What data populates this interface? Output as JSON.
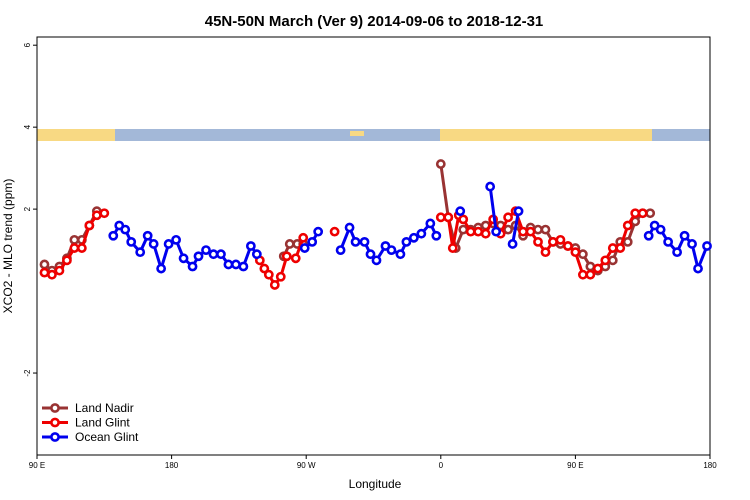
{
  "chart_data": {
    "type": "line",
    "title": "45N-50N March (Ver 9)   2014-09-06 to 2018-12-31",
    "x_label": "Longitude",
    "y_label": "XCO2 - MLO trend (ppm)",
    "xlim": [
      90,
      540
    ],
    "ylim": [
      -4,
      6.2
    ],
    "xticks": [
      {
        "value": 90,
        "label": "90 E"
      },
      180,
      {
        "value": 270,
        "label": "90 W"
      },
      {
        "value": 360,
        "label": "0"
      },
      {
        "value": 450,
        "label": "90 E"
      },
      {
        "value": 540,
        "label": "180"
      }
    ],
    "yticks": [
      -2,
      2,
      4,
      6
    ],
    "legend": "bottom-left",
    "series": [
      {
        "name": "Land Nadir",
        "color": "#993333",
        "x": [
          95,
          100,
          105,
          110,
          115,
          120,
          125,
          130,
          null,
          255,
          259,
          264,
          268,
          null,
          360,
          365,
          370,
          375,
          380,
          385,
          390,
          395,
          400,
          405,
          410,
          415,
          420,
          425,
          430,
          435,
          440,
          445,
          450,
          455,
          460,
          465,
          470,
          475,
          480,
          485,
          490,
          495,
          500
        ],
        "values": [
          0.65,
          0.5,
          0.6,
          0.8,
          1.25,
          1.25,
          1.6,
          1.95,
          null,
          0.85,
          1.15,
          1.15,
          1.15,
          null,
          3.1,
          1.8,
          1.05,
          1.5,
          1.5,
          1.55,
          1.6,
          1.65,
          1.6,
          1.5,
          1.6,
          1.35,
          1.55,
          1.5,
          1.5,
          1.2,
          1.15,
          1.1,
          1.05,
          0.9,
          0.6,
          0.5,
          0.6,
          0.75,
          1.2,
          1.2,
          1.7,
          1.9,
          1.9
        ]
      },
      {
        "name": "Land Glint",
        "color": "#ee0000",
        "x": [
          95,
          100,
          105,
          110,
          115,
          120,
          125,
          130,
          135,
          null,
          239,
          242,
          245,
          249,
          253,
          257,
          263,
          268,
          null,
          289,
          null,
          360,
          365,
          368,
          372,
          375,
          380,
          385,
          390,
          395,
          400,
          405,
          410,
          415,
          420,
          425,
          430,
          435,
          440,
          445,
          450,
          455,
          460,
          465,
          470,
          475,
          480,
          485,
          490,
          495
        ],
        "values": [
          0.45,
          0.4,
          0.5,
          0.75,
          1.05,
          1.05,
          1.6,
          1.85,
          1.9,
          null,
          0.75,
          0.55,
          0.4,
          0.15,
          0.35,
          0.85,
          0.8,
          1.3,
          null,
          1.45,
          null,
          1.8,
          1.8,
          1.05,
          1.85,
          1.75,
          1.45,
          1.45,
          1.4,
          1.75,
          1.4,
          1.8,
          1.95,
          1.45,
          1.45,
          1.2,
          0.95,
          1.2,
          1.25,
          1.1,
          0.95,
          0.4,
          0.4,
          0.55,
          0.75,
          1.05,
          1.05,
          1.6,
          1.9,
          1.9
        ]
      },
      {
        "name": "Ocean Glint",
        "color": "#0000ee",
        "x": [
          141,
          145,
          149,
          153,
          159,
          164,
          168,
          173,
          178,
          183,
          188,
          194,
          198,
          203,
          208,
          213,
          218,
          223,
          228,
          233,
          237,
          null,
          269,
          274,
          278,
          null,
          293,
          299,
          303,
          309,
          313,
          317,
          323,
          327,
          333,
          337,
          342,
          347,
          353,
          357,
          null,
          373,
          null,
          393,
          397,
          null,
          408,
          412,
          null,
          499,
          503,
          507,
          512,
          518,
          523,
          528,
          532,
          538
        ],
        "values": [
          1.35,
          1.6,
          1.5,
          1.2,
          0.95,
          1.35,
          1.15,
          0.55,
          1.15,
          1.25,
          0.8,
          0.6,
          0.85,
          1.0,
          0.9,
          0.9,
          0.65,
          0.65,
          0.6,
          1.1,
          0.9,
          null,
          1.05,
          1.2,
          1.45,
          null,
          1.0,
          1.55,
          1.2,
          1.2,
          0.9,
          0.75,
          1.1,
          1.0,
          0.9,
          1.2,
          1.3,
          1.4,
          1.65,
          1.35,
          null,
          1.95,
          null,
          2.55,
          1.45,
          null,
          1.15,
          1.95,
          null,
          1.35,
          1.6,
          1.5,
          1.2,
          0.95,
          1.35,
          1.15,
          0.55,
          1.1
        ]
      }
    ]
  }
}
